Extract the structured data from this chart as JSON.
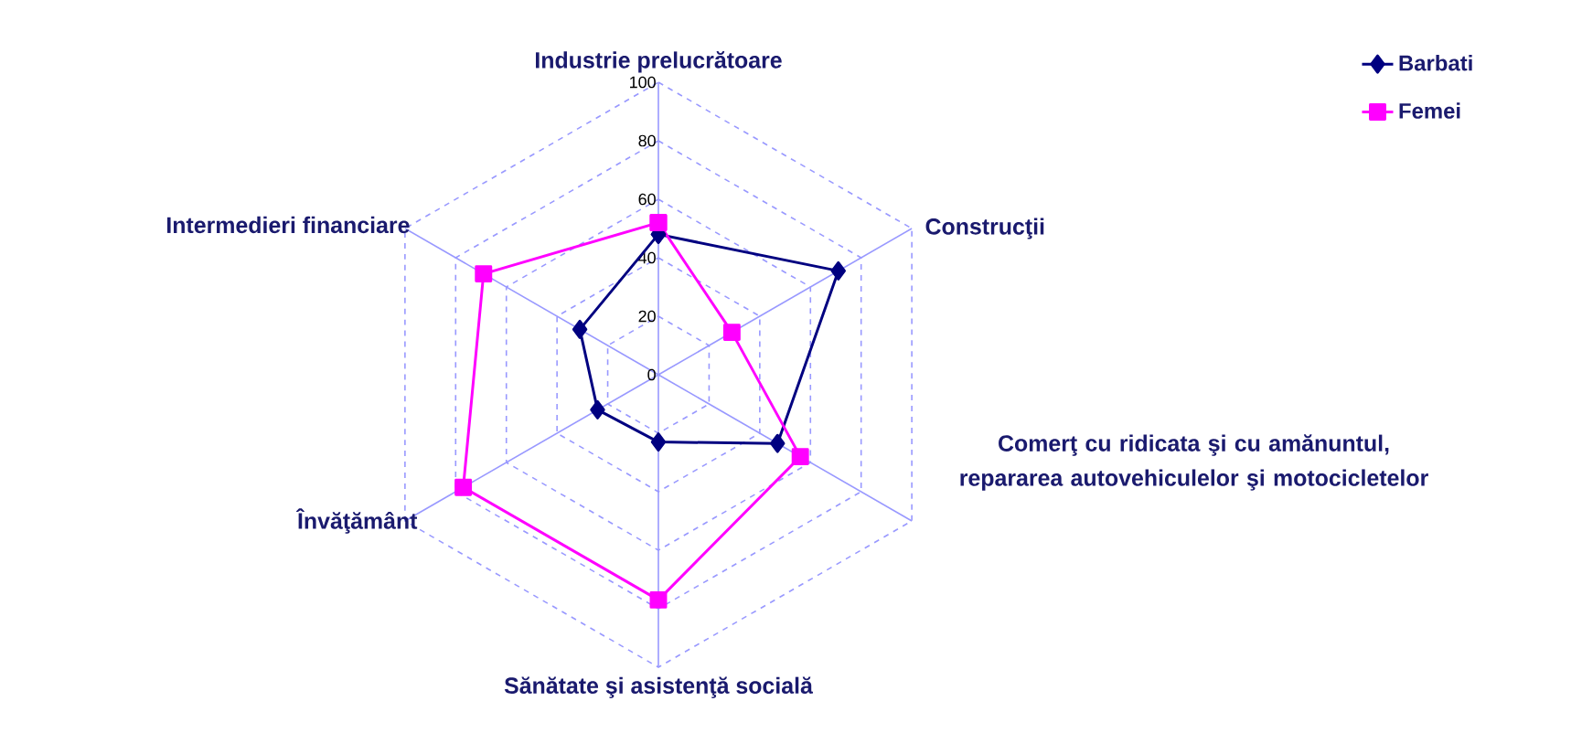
{
  "chart_data": {
    "type": "radar",
    "categories": [
      "Industrie prelucrătoare",
      "Construcţii",
      "Comerţ cu ridicata şi cu amănuntul, repararea autovehiculelor şi motocicletelor",
      "Sănătate şi asistenţă socială",
      "Învăţământ",
      "Intermedieri financiare"
    ],
    "series": [
      {
        "name": "Barbati",
        "color": "#000080",
        "marker": "diamond",
        "values": [
          48,
          71,
          47,
          23,
          24,
          31
        ]
      },
      {
        "name": "Femei",
        "color": "#ff00ff",
        "marker": "square",
        "values": [
          52,
          29,
          56,
          77,
          77,
          69
        ]
      }
    ],
    "ylim": [
      0,
      100
    ],
    "yticks": [
      0,
      20,
      40,
      60,
      80,
      100
    ],
    "grid": true,
    "legend": "top right"
  }
}
